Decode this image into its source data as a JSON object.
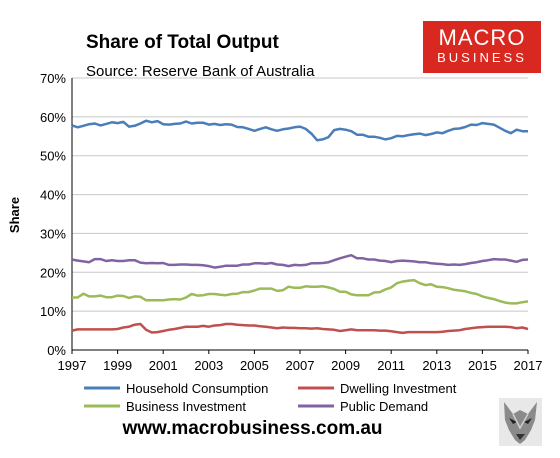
{
  "chart_data": {
    "type": "line",
    "title": "Share of Total Output",
    "subtitle": "Source: Reserve Bank of Australia",
    "ylabel": "Share",
    "xlabel": "",
    "xlim": [
      1997,
      2017
    ],
    "ylim": [
      0,
      70
    ],
    "grid": true,
    "yticks": [
      "0%",
      "10%",
      "20%",
      "30%",
      "40%",
      "50%",
      "60%",
      "70%"
    ],
    "xticks": [
      "1997",
      "1999",
      "2001",
      "2003",
      "2005",
      "2007",
      "2009",
      "2011",
      "2013",
      "2015",
      "2017"
    ],
    "legend_position": "bottom",
    "series": [
      {
        "name": "Household Consumption",
        "color": "#4a7ebb",
        "x": [
          1997.0,
          1997.25,
          1997.5,
          1997.75,
          1998.0,
          1998.25,
          1998.5,
          1998.75,
          1999.0,
          1999.25,
          1999.5,
          1999.75,
          2000.0,
          2000.25,
          2000.5,
          2000.75,
          2001.0,
          2001.25,
          2001.5,
          2001.75,
          2002.0,
          2002.25,
          2002.5,
          2002.75,
          2003.0,
          2003.25,
          2003.5,
          2003.75,
          2004.0,
          2004.25,
          2004.5,
          2004.75,
          2005.0,
          2005.25,
          2005.5,
          2005.75,
          2006.0,
          2006.25,
          2006.5,
          2006.75,
          2007.0,
          2007.25,
          2007.5,
          2007.75,
          2008.0,
          2008.25,
          2008.5,
          2008.75,
          2009.0,
          2009.25,
          2009.5,
          2009.75,
          2010.0,
          2010.25,
          2010.5,
          2010.75,
          2011.0,
          2011.25,
          2011.5,
          2011.75,
          2012.0,
          2012.25,
          2012.5,
          2012.75,
          2013.0,
          2013.25,
          2013.5,
          2013.75,
          2014.0,
          2014.25,
          2014.5,
          2014.75,
          2015.0,
          2015.25,
          2015.5,
          2015.75,
          2016.0,
          2016.25,
          2016.5,
          2016.75,
          2017.0
        ],
        "values": [
          57.8,
          57.3,
          57.7,
          58.1,
          58.3,
          57.8,
          58.2,
          58.6,
          58.4,
          58.7,
          57.5,
          57.7,
          58.3,
          59.0,
          58.6,
          58.9,
          58.1,
          58.0,
          58.2,
          58.3,
          58.8,
          58.3,
          58.5,
          58.5,
          58.0,
          58.2,
          57.9,
          58.1,
          58.0,
          57.4,
          57.3,
          56.9,
          56.4,
          56.9,
          57.3,
          56.8,
          56.4,
          56.8,
          57.0,
          57.3,
          57.5,
          56.9,
          55.7,
          54.0,
          54.2,
          54.8,
          56.6,
          56.9,
          56.7,
          56.3,
          55.4,
          55.4,
          54.9,
          54.9,
          54.6,
          54.2,
          54.5,
          55.1,
          55.0,
          55.3,
          55.5,
          55.7,
          55.3,
          55.6,
          56.0,
          55.8,
          56.4,
          56.9,
          57.0,
          57.4,
          58.0,
          57.9,
          58.4,
          58.2,
          58.0,
          57.2,
          56.4,
          55.8,
          56.7,
          56.3,
          56.3
        ]
      },
      {
        "name": "Dwelling Investment",
        "color": "#c0504d",
        "x": [
          1997.0,
          1997.25,
          1997.5,
          1997.75,
          1998.0,
          1998.25,
          1998.5,
          1998.75,
          1999.0,
          1999.25,
          1999.5,
          1999.75,
          2000.0,
          2000.25,
          2000.5,
          2000.75,
          2001.0,
          2001.25,
          2001.5,
          2001.75,
          2002.0,
          2002.25,
          2002.5,
          2002.75,
          2003.0,
          2003.25,
          2003.5,
          2003.75,
          2004.0,
          2004.25,
          2004.5,
          2004.75,
          2005.0,
          2005.25,
          2005.5,
          2005.75,
          2006.0,
          2006.25,
          2006.5,
          2006.75,
          2007.0,
          2007.25,
          2007.5,
          2007.75,
          2008.0,
          2008.25,
          2008.5,
          2008.75,
          2009.0,
          2009.25,
          2009.5,
          2009.75,
          2010.0,
          2010.25,
          2010.5,
          2010.75,
          2011.0,
          2011.25,
          2011.5,
          2011.75,
          2012.0,
          2012.25,
          2012.5,
          2012.75,
          2013.0,
          2013.25,
          2013.5,
          2013.75,
          2014.0,
          2014.25,
          2014.5,
          2014.75,
          2015.0,
          2015.25,
          2015.5,
          2015.75,
          2016.0,
          2016.25,
          2016.5,
          2016.75,
          2017.0
        ],
        "values": [
          5.0,
          5.3,
          5.3,
          5.3,
          5.3,
          5.3,
          5.3,
          5.3,
          5.4,
          5.8,
          6.0,
          6.5,
          6.7,
          5.2,
          4.5,
          4.6,
          4.9,
          5.2,
          5.4,
          5.7,
          6.0,
          6.0,
          6.0,
          6.2,
          6.0,
          6.3,
          6.4,
          6.7,
          6.7,
          6.5,
          6.4,
          6.3,
          6.3,
          6.1,
          6.0,
          5.8,
          5.6,
          5.8,
          5.7,
          5.7,
          5.6,
          5.6,
          5.5,
          5.6,
          5.4,
          5.3,
          5.2,
          4.9,
          5.1,
          5.3,
          5.1,
          5.1,
          5.1,
          5.1,
          5.0,
          5.0,
          4.8,
          4.6,
          4.4,
          4.6,
          4.6,
          4.6,
          4.6,
          4.6,
          4.6,
          4.7,
          4.9,
          5.0,
          5.1,
          5.4,
          5.6,
          5.8,
          5.9,
          6.0,
          6.0,
          6.0,
          6.0,
          5.9,
          5.6,
          5.8,
          5.4
        ]
      },
      {
        "name": "Business Investment",
        "color": "#9bbb59",
        "x": [
          1997.0,
          1997.25,
          1997.5,
          1997.75,
          1998.0,
          1998.25,
          1998.5,
          1998.75,
          1999.0,
          1999.25,
          1999.5,
          1999.75,
          2000.0,
          2000.25,
          2000.5,
          2000.75,
          2001.0,
          2001.25,
          2001.5,
          2001.75,
          2002.0,
          2002.25,
          2002.5,
          2002.75,
          2003.0,
          2003.25,
          2003.5,
          2003.75,
          2004.0,
          2004.25,
          2004.5,
          2004.75,
          2005.0,
          2005.25,
          2005.5,
          2005.75,
          2006.0,
          2006.25,
          2006.5,
          2006.75,
          2007.0,
          2007.25,
          2007.5,
          2007.75,
          2008.0,
          2008.25,
          2008.5,
          2008.75,
          2009.0,
          2009.25,
          2009.5,
          2009.75,
          2010.0,
          2010.25,
          2010.5,
          2010.75,
          2011.0,
          2011.25,
          2011.5,
          2011.75,
          2012.0,
          2012.25,
          2012.5,
          2012.75,
          2013.0,
          2013.25,
          2013.5,
          2013.75,
          2014.0,
          2014.25,
          2014.5,
          2014.75,
          2015.0,
          2015.25,
          2015.5,
          2015.75,
          2016.0,
          2016.25,
          2016.5,
          2016.75,
          2017.0
        ],
        "values": [
          13.5,
          13.5,
          14.5,
          13.8,
          13.8,
          14.0,
          13.6,
          13.6,
          14.0,
          13.9,
          13.4,
          13.8,
          13.7,
          12.8,
          12.8,
          12.8,
          12.8,
          13.0,
          13.1,
          13.0,
          13.5,
          14.4,
          14.0,
          14.1,
          14.4,
          14.4,
          14.2,
          14.1,
          14.4,
          14.5,
          14.9,
          14.9,
          15.3,
          15.8,
          15.8,
          15.8,
          15.2,
          15.4,
          16.3,
          16.0,
          16.0,
          16.4,
          16.3,
          16.3,
          16.4,
          16.1,
          15.7,
          15.0,
          15.0,
          14.3,
          14.1,
          14.1,
          14.1,
          14.8,
          14.9,
          15.6,
          16.1,
          17.2,
          17.6,
          17.8,
          18.0,
          17.2,
          16.7,
          16.9,
          16.3,
          16.2,
          15.9,
          15.5,
          15.3,
          15.1,
          14.7,
          14.4,
          13.8,
          13.4,
          13.1,
          12.6,
          12.2,
          12.0,
          12.0,
          12.3,
          12.5
        ]
      },
      {
        "name": "Public Demand",
        "color": "#8064a2",
        "x": [
          1997.0,
          1997.25,
          1997.5,
          1997.75,
          1998.0,
          1998.25,
          1998.5,
          1998.75,
          1999.0,
          1999.25,
          1999.5,
          1999.75,
          2000.0,
          2000.25,
          2000.5,
          2000.75,
          2001.0,
          2001.25,
          2001.5,
          2001.75,
          2002.0,
          2002.25,
          2002.5,
          2002.75,
          2003.0,
          2003.25,
          2003.5,
          2003.75,
          2004.0,
          2004.25,
          2004.5,
          2004.75,
          2005.0,
          2005.25,
          2005.5,
          2005.75,
          2006.0,
          2006.25,
          2006.5,
          2006.75,
          2007.0,
          2007.25,
          2007.5,
          2007.75,
          2008.0,
          2008.25,
          2008.5,
          2008.75,
          2009.0,
          2009.25,
          2009.5,
          2009.75,
          2010.0,
          2010.25,
          2010.5,
          2010.75,
          2011.0,
          2011.25,
          2011.5,
          2011.75,
          2012.0,
          2012.25,
          2012.5,
          2012.75,
          2013.0,
          2013.25,
          2013.5,
          2013.75,
          2014.0,
          2014.25,
          2014.5,
          2014.75,
          2015.0,
          2015.25,
          2015.5,
          2015.75,
          2016.0,
          2016.25,
          2016.5,
          2016.75,
          2017.0
        ],
        "values": [
          23.3,
          23.0,
          22.8,
          22.6,
          23.4,
          23.4,
          22.9,
          23.1,
          22.9,
          22.9,
          23.1,
          23.1,
          22.5,
          22.3,
          22.4,
          22.3,
          22.4,
          21.9,
          21.9,
          22.0,
          22.0,
          21.9,
          21.9,
          21.8,
          21.6,
          21.2,
          21.4,
          21.7,
          21.7,
          21.7,
          22.0,
          22.0,
          22.3,
          22.3,
          22.2,
          22.4,
          22.0,
          21.9,
          21.6,
          21.9,
          21.8,
          21.9,
          22.3,
          22.3,
          22.4,
          22.6,
          23.1,
          23.6,
          24.0,
          24.4,
          23.6,
          23.6,
          23.3,
          23.3,
          23.0,
          22.9,
          22.6,
          22.9,
          23.0,
          22.9,
          22.8,
          22.6,
          22.6,
          22.3,
          22.2,
          22.1,
          21.9,
          22.0,
          21.9,
          22.1,
          22.4,
          22.6,
          22.9,
          23.1,
          23.4,
          23.3,
          23.3,
          23.0,
          22.7,
          23.2,
          23.3
        ]
      }
    ]
  },
  "logo": {
    "line1": "MACRO",
    "line2": "BUSINESS"
  },
  "footer": {
    "url": "www.macrobusiness.com.au"
  },
  "icons": {
    "logo_mark": "wolf-icon"
  }
}
